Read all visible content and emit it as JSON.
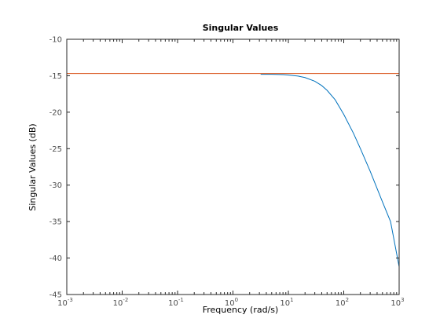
{
  "chart_data": {
    "type": "line",
    "title": "Singular Values",
    "xlabel": "Frequency (rad/s)",
    "ylabel": "Singular Values (dB)",
    "xscale": "log",
    "xlim": [
      0.001,
      1000
    ],
    "ylim": [
      -45,
      -10
    ],
    "grid": false,
    "legend": "none",
    "x_ticks": [
      {
        "base": "10",
        "exp": "-3"
      },
      {
        "base": "10",
        "exp": "-2"
      },
      {
        "base": "10",
        "exp": "-1"
      },
      {
        "base": "10",
        "exp": "0"
      },
      {
        "base": "10",
        "exp": "1"
      },
      {
        "base": "10",
        "exp": "2"
      },
      {
        "base": "10",
        "exp": "3"
      }
    ],
    "x_tick_values": [
      0.001,
      0.01,
      0.1,
      1,
      10,
      100,
      1000
    ],
    "y_ticks": [
      "-10",
      "-15",
      "-20",
      "-25",
      "-30",
      "-35",
      "-40",
      "-45"
    ],
    "y_tick_values": [
      -10,
      -15,
      -20,
      -25,
      -30,
      -35,
      -40,
      -45
    ],
    "series": [
      {
        "color": "#0072bd",
        "x": [
          3.16,
          5,
          8,
          10,
          15,
          20,
          30,
          40,
          50,
          70,
          100,
          150,
          200,
          300,
          500,
          700,
          1000
        ],
        "y": [
          -14.8,
          -14.8,
          -14.85,
          -14.9,
          -15.05,
          -15.25,
          -15.75,
          -16.35,
          -17.0,
          -18.3,
          -20.3,
          -22.9,
          -25.0,
          -28.1,
          -32.3,
          -35.0,
          -41.2
        ]
      },
      {
        "color": "#d95319",
        "x": [
          0.001,
          1000
        ],
        "y": [
          -14.7,
          -14.7
        ]
      }
    ]
  }
}
